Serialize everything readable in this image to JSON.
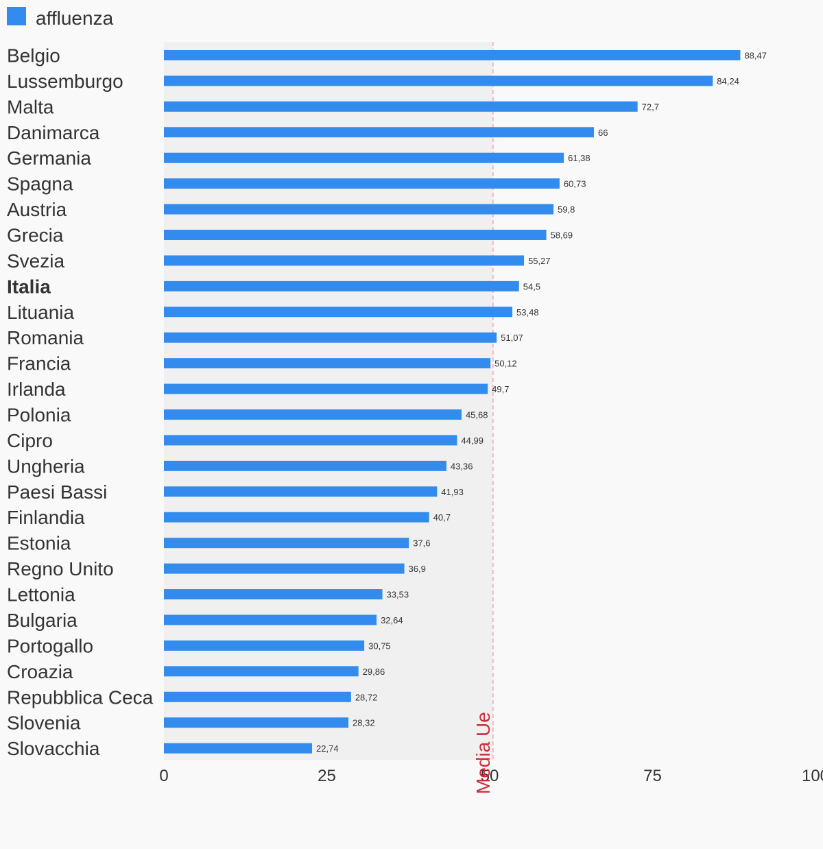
{
  "chart_data": {
    "type": "bar",
    "orientation": "horizontal",
    "legend": {
      "position": "top-left",
      "entries": [
        {
          "name": "affluenza",
          "color": "#338ced"
        }
      ]
    },
    "series": [
      {
        "name": "affluenza",
        "color": "#338ced",
        "values": [
          88.47,
          84.24,
          72.7,
          66,
          61.38,
          60.73,
          59.8,
          58.69,
          55.27,
          54.5,
          53.48,
          51.07,
          50.12,
          49.7,
          45.68,
          44.99,
          43.36,
          41.93,
          40.7,
          37.6,
          36.9,
          33.53,
          32.64,
          30.75,
          29.86,
          28.72,
          28.32,
          22.74
        ],
        "value_labels": [
          "88,47",
          "84,24",
          "72,7",
          "66",
          "61,38",
          "60,73",
          "59,8",
          "58,69",
          "55,27",
          "54,5",
          "53,48",
          "51,07",
          "50,12",
          "49,7",
          "45,68",
          "44,99",
          "43,36",
          "41,93",
          "40,7",
          "37,6",
          "36,9",
          "33,53",
          "32,64",
          "30,75",
          "29,86",
          "28,72",
          "28,32",
          "22,74"
        ]
      }
    ],
    "categories": [
      "Belgio",
      "Lussemburgo",
      "Malta",
      "Danimarca",
      "Germania",
      "Spagna",
      "Austria",
      "Grecia",
      "Svezia",
      "Italia",
      "Lituania",
      "Romania",
      "Francia",
      "Irlanda",
      "Polonia",
      "Cipro",
      "Ungheria",
      "Paesi Bassi",
      "Finlandia",
      "Estonia",
      "Regno Unito",
      "Lettonia",
      "Bulgaria",
      "Portogallo",
      "Croazia",
      "Repubblica Ceca",
      "Slovenia",
      "Slovacchia"
    ],
    "highlighted_category": "Italia",
    "xlim": [
      0,
      100
    ],
    "x_ticks": [
      0,
      25,
      50,
      75,
      100
    ],
    "x_tick_labels": [
      "0",
      "25",
      "50",
      "75",
      "100"
    ],
    "reference_line": {
      "value": 50.5,
      "label": "Media Ue",
      "color": "#cc2e3a"
    },
    "shaded_band": {
      "from": 0,
      "to": 50.5,
      "color": "#f0f0f0"
    },
    "grid": false
  }
}
